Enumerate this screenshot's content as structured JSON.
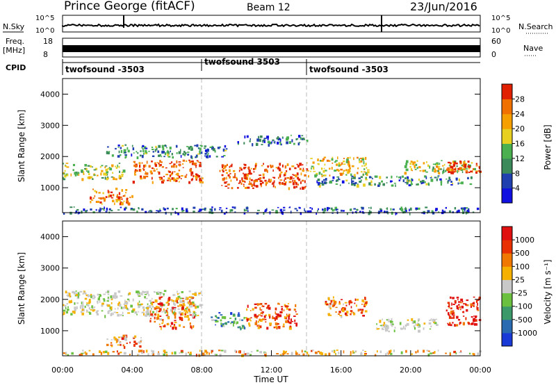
{
  "header": {
    "station": "Prince George (fitACF)",
    "beam": "Beam 12",
    "date": "23/Jun/2016"
  },
  "strips": {
    "nsky_label": "N.Sky",
    "nsky_ticks": [
      "10^5",
      "10^0"
    ],
    "nsearch_label": "N.Search",
    "nsearch_ticks": [
      "10^5",
      "10^0"
    ],
    "freq_label": "Freq.",
    "freq_unit": "[MHz]",
    "freq_ticks": [
      "18",
      "8"
    ],
    "nave_label": "Nave",
    "nave_ticks": [
      "60",
      "0"
    ],
    "cpid_label": "CPID",
    "cpid_segments": [
      "twofsound -3503",
      "twofsound 3503",
      "twofsound -3503"
    ]
  },
  "chart_data": [
    {
      "type": "heatmap",
      "name": "power",
      "ylabel": "Slant Range [km]",
      "ylim": [
        200,
        4500
      ],
      "yticks": [
        "1000",
        "2000",
        "3000",
        "4000"
      ],
      "xlim_hours": [
        0,
        24
      ],
      "colorbar_label": "Power [dB]",
      "colorbar_ticks": [
        "4",
        "8",
        "12",
        "16",
        "20",
        "24",
        "28"
      ],
      "colorbar_colors": [
        "#1010e0",
        "#2040b0",
        "#3a8a5a",
        "#4ab050",
        "#e8d020",
        "#f5a000",
        "#f07000",
        "#e02000"
      ],
      "bands": [
        {
          "start": 0.0,
          "end": 3.5,
          "range_from": 1300,
          "range_to": 1800,
          "level": 0.5
        },
        {
          "start": 1.5,
          "end": 4.0,
          "range_from": 500,
          "range_to": 1000,
          "level": 0.8
        },
        {
          "start": 4.0,
          "end": 8.0,
          "range_from": 1200,
          "range_to": 1900,
          "level": 0.85
        },
        {
          "start": 2.5,
          "end": 9.5,
          "range_from": 2000,
          "range_to": 2400,
          "level": 0.3
        },
        {
          "start": 9.0,
          "end": 14.0,
          "range_from": 1000,
          "range_to": 1800,
          "level": 0.9
        },
        {
          "start": 10.0,
          "end": 14.0,
          "range_from": 2400,
          "range_to": 2700,
          "level": 0.25
        },
        {
          "start": 14.0,
          "end": 17.5,
          "range_from": 1400,
          "range_to": 2000,
          "level": 0.6
        },
        {
          "start": 14.5,
          "end": 23.5,
          "range_from": 1100,
          "range_to": 1400,
          "level": 0.3
        },
        {
          "start": 19.5,
          "end": 24.0,
          "range_from": 1500,
          "range_to": 1900,
          "level": 0.55
        },
        {
          "start": 22.0,
          "end": 24.0,
          "range_from": 1500,
          "range_to": 1900,
          "level": 0.95
        },
        {
          "start": 0.0,
          "end": 24.0,
          "range_from": 200,
          "range_to": 400,
          "level": 0.2
        }
      ]
    },
    {
      "type": "heatmap",
      "name": "velocity",
      "ylabel": "Slant Range [km]",
      "ylim": [
        200,
        4500
      ],
      "yticks": [
        "1000",
        "2000",
        "3000",
        "4000"
      ],
      "xlim_hours": [
        0,
        24
      ],
      "xlabel": "Time UT",
      "xticks": [
        "00:00",
        "04:00",
        "08:00",
        "12:00",
        "16:00",
        "20:00",
        "00:00"
      ],
      "colorbar_label": "Velocity [m s⁻¹]",
      "colorbar_ticks": [
        "1000",
        "500",
        "100",
        "25",
        "-25",
        "-100",
        "-500",
        "-1000"
      ],
      "colorbar_colors": [
        "#1a3ad8",
        "#2a6ab0",
        "#3c9a6a",
        "#6cc040",
        "#c8c8c8",
        "#f5b000",
        "#f07800",
        "#e83000",
        "#e01010"
      ],
      "bands": [
        {
          "start": 0.0,
          "end": 8.0,
          "range_from": 1500,
          "range_to": 2300,
          "level": 0.5
        },
        {
          "start": 5.0,
          "end": 7.5,
          "range_from": 1100,
          "range_to": 2100,
          "level": 0.75
        },
        {
          "start": 2.5,
          "end": 4.5,
          "range_from": 500,
          "range_to": 900,
          "level": 0.7
        },
        {
          "start": 8.5,
          "end": 10.5,
          "range_from": 1100,
          "range_to": 1600,
          "level": 0.25
        },
        {
          "start": 10.5,
          "end": 13.5,
          "range_from": 1100,
          "range_to": 1900,
          "level": 0.8
        },
        {
          "start": 15.0,
          "end": 17.5,
          "range_from": 1500,
          "range_to": 2100,
          "level": 0.75
        },
        {
          "start": 18.0,
          "end": 21.5,
          "range_from": 1000,
          "range_to": 1400,
          "level": 0.5
        },
        {
          "start": 22.0,
          "end": 24.0,
          "range_from": 1200,
          "range_to": 2100,
          "level": 0.95
        },
        {
          "start": 0.0,
          "end": 24.0,
          "range_from": 250,
          "range_to": 400,
          "level": 0.6
        }
      ]
    }
  ]
}
